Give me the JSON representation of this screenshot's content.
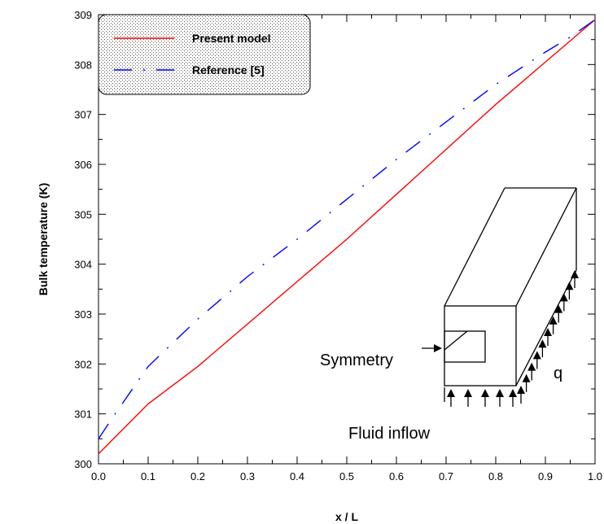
{
  "chart_data": {
    "type": "line",
    "title": "",
    "xlabel": "x / L",
    "ylabel": "Bulk temperature (K)",
    "xlim": [
      0.0,
      1.0
    ],
    "ylim": [
      300,
      309
    ],
    "x_ticks": [
      "0.0",
      "0.1",
      "0.2",
      "0.3",
      "0.4",
      "0.5",
      "0.6",
      "0.7",
      "0.8",
      "0.9",
      "1.0"
    ],
    "y_ticks": [
      "300",
      "301",
      "302",
      "303",
      "304",
      "305",
      "306",
      "307",
      "308",
      "309"
    ],
    "legend_position": "top-left",
    "series": [
      {
        "name": "Present model",
        "color": "#ff0000",
        "style": "solid",
        "x": [
          0.0,
          0.1,
          0.2,
          0.3,
          0.4,
          0.5,
          0.6,
          0.7,
          0.8,
          0.9,
          1.0
        ],
        "y": [
          300.2,
          301.2,
          301.95,
          302.8,
          303.65,
          304.5,
          305.4,
          306.3,
          307.2,
          308.05,
          308.9
        ]
      },
      {
        "name": "Reference [5]",
        "color": "#0000ff",
        "style": "dash-dot",
        "x": [
          0.0,
          0.03,
          0.1,
          0.2,
          0.3,
          0.4,
          0.5,
          0.6,
          0.7,
          0.8,
          0.9,
          0.95,
          1.0
        ],
        "y": [
          300.5,
          300.95,
          301.95,
          302.9,
          303.75,
          304.5,
          305.3,
          306.1,
          306.85,
          307.6,
          308.25,
          308.55,
          308.9
        ]
      }
    ],
    "inset": {
      "symmetry_label": "Symmetry",
      "heat_flux_label": "q",
      "inflow_label": "Fluid inflow"
    }
  }
}
